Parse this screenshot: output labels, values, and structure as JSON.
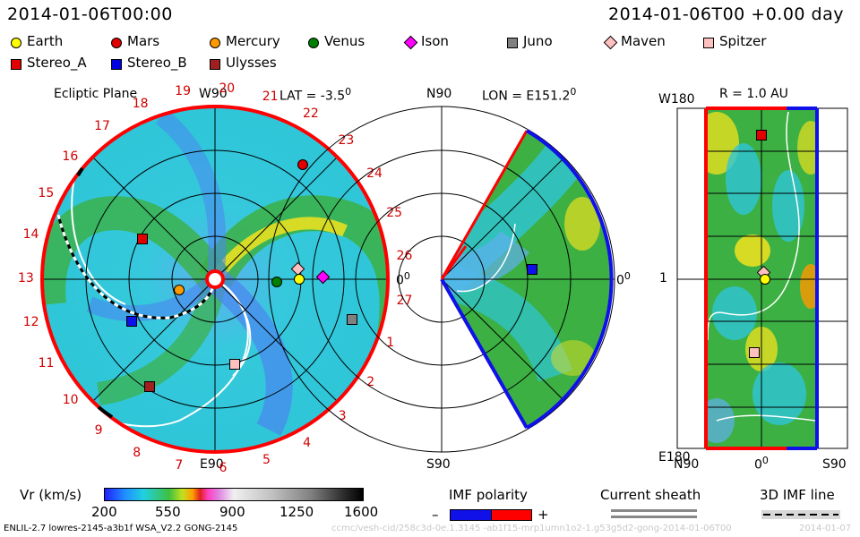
{
  "header": {
    "left_timestamp": "2014-01-06T00:00",
    "right_timestamp": "2014-01-06T00 +0.00 day"
  },
  "legend": [
    {
      "name": "Earth",
      "shape": "circle",
      "color": "#ffff00"
    },
    {
      "name": "Mars",
      "shape": "circle",
      "color": "#e00000"
    },
    {
      "name": "Mercury",
      "shape": "circle",
      "color": "#ff9900"
    },
    {
      "name": "Venus",
      "shape": "circle",
      "color": "#008000"
    },
    {
      "name": "Ison",
      "shape": "diamond",
      "color": "#ff00ff"
    },
    {
      "name": "Juno",
      "shape": "square",
      "color": "#808080"
    },
    {
      "name": "Maven",
      "shape": "diamond",
      "color": "#ffc0c0"
    },
    {
      "name": "Spitzer",
      "shape": "square",
      "color": "#ffc0c0"
    },
    {
      "name": "Stereo_A",
      "shape": "square",
      "color": "#e00000"
    },
    {
      "name": "Stereo_B",
      "shape": "square",
      "color": "#0000e0"
    },
    {
      "name": "Ulysses",
      "shape": "square",
      "color": "#a02020"
    }
  ],
  "ecliptic": {
    "title": "Ecliptic Plane",
    "top_label": "W90",
    "bottom_label": "E90",
    "right_label": "0",
    "lat_label": "LAT = -3.5",
    "carrington": [
      "19",
      "20",
      "21",
      "22",
      "23",
      "24",
      "25",
      "26",
      "27",
      "1",
      "2",
      "3",
      "4",
      "5",
      "6",
      "7",
      "8",
      "9",
      "10",
      "11",
      "12",
      "13",
      "14",
      "15",
      "16",
      "17",
      "18"
    ]
  },
  "meridional": {
    "lon_label": "LON = E151.2",
    "top_label": "N90",
    "bottom_label": "S90",
    "right_label": "0"
  },
  "radial": {
    "r_label": "R = 1.0 AU",
    "top_label": "W180",
    "bottom_label": "E180",
    "left_mid": "1",
    "x_labels": [
      "N90",
      "0",
      "S90"
    ]
  },
  "colorbar": {
    "label": "Vr (km/s)",
    "ticks": [
      "200",
      "550",
      "900",
      "1250",
      "1600"
    ]
  },
  "imf": {
    "polarity_label": "IMF polarity",
    "minus": "–",
    "plus": "+",
    "sheath_label": "Current sheath",
    "line_label": "3D IMF line"
  },
  "footer": {
    "model": "ENLIL-2.7 lowres-2145-a3b1f WSA_V2.2 GONG-2145",
    "path": "ccmc/vesh-cid/258c3d-0e.1.3145 -ab1f15-mrp1umn1o2-1.g53g5d2-gong-2014-01-06T00",
    "date": "2014-01-07"
  },
  "colors": {
    "frame_red": "#ff0000",
    "frame_blue": "#1010e8",
    "base_cyan": "#2ec6d8",
    "green": "#3cb043",
    "yellow": "#e8e020",
    "blue": "#4a86f0"
  }
}
